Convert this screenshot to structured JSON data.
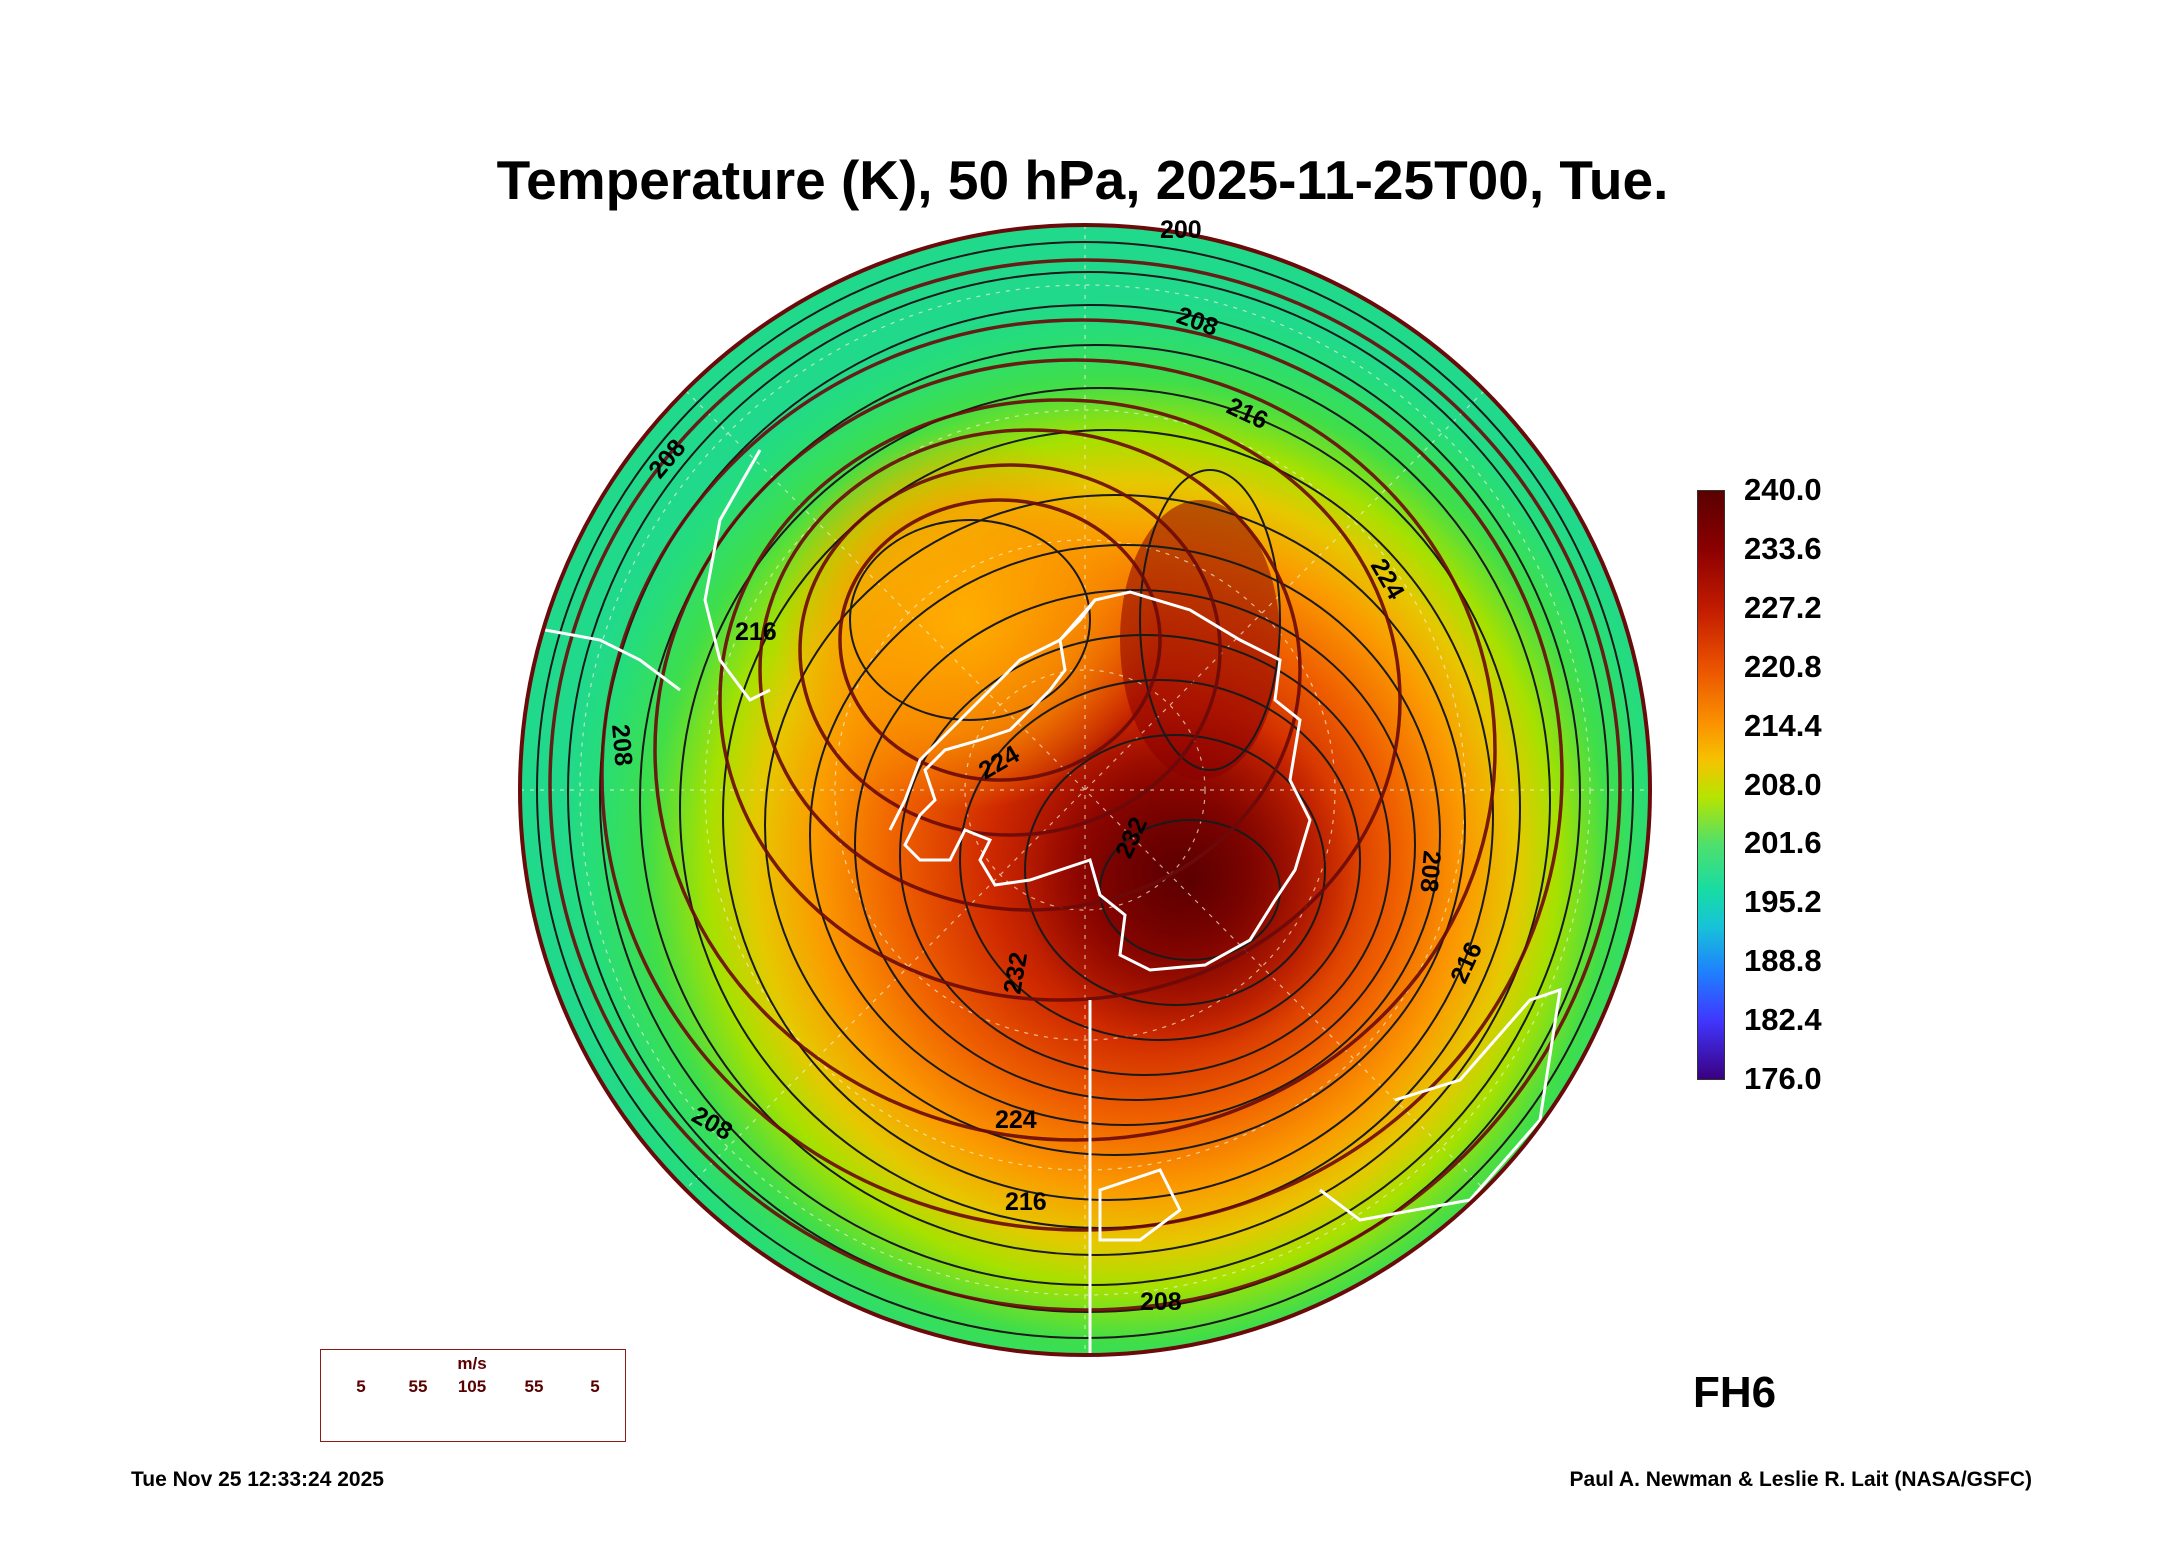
{
  "title": "Temperature (K), 50 hPa, 2025-11-25T00, Tue.",
  "colorbar": {
    "labels": [
      "240.0",
      "233.6",
      "227.2",
      "220.8",
      "214.4",
      "208.0",
      "201.6",
      "195.2",
      "188.8",
      "182.4",
      "176.0"
    ],
    "colors": {
      "max": "#5a0000",
      "high": "#c21b00",
      "mid_high": "#fb9500",
      "mid": "#4fe06b",
      "mid_low": "#17c3d8",
      "low": "#1f7fff",
      "min": "#3a0080"
    }
  },
  "map": {
    "projection_center": "South Pole",
    "contour_labels": [
      "200",
      "208",
      "208",
      "208",
      "208",
      "208",
      "216",
      "216",
      "216",
      "216",
      "224",
      "224",
      "224",
      "232",
      "232"
    ],
    "colors": {
      "coastline": "#ffffff",
      "contour": "#1a1a1a",
      "streamline": "#6b0a0a",
      "grid": "#e8e8d0"
    }
  },
  "wind_legend": {
    "unit": "m/s",
    "values": [
      "5",
      "55",
      "105",
      "55",
      "5"
    ],
    "color": "#5a0000"
  },
  "forecast_hour": "FH6",
  "footer": {
    "timestamp": "Tue Nov 25 12:33:24 2025",
    "credit": "Paul A. Newman & Leslie R. Lait (NASA/GSFC)"
  }
}
